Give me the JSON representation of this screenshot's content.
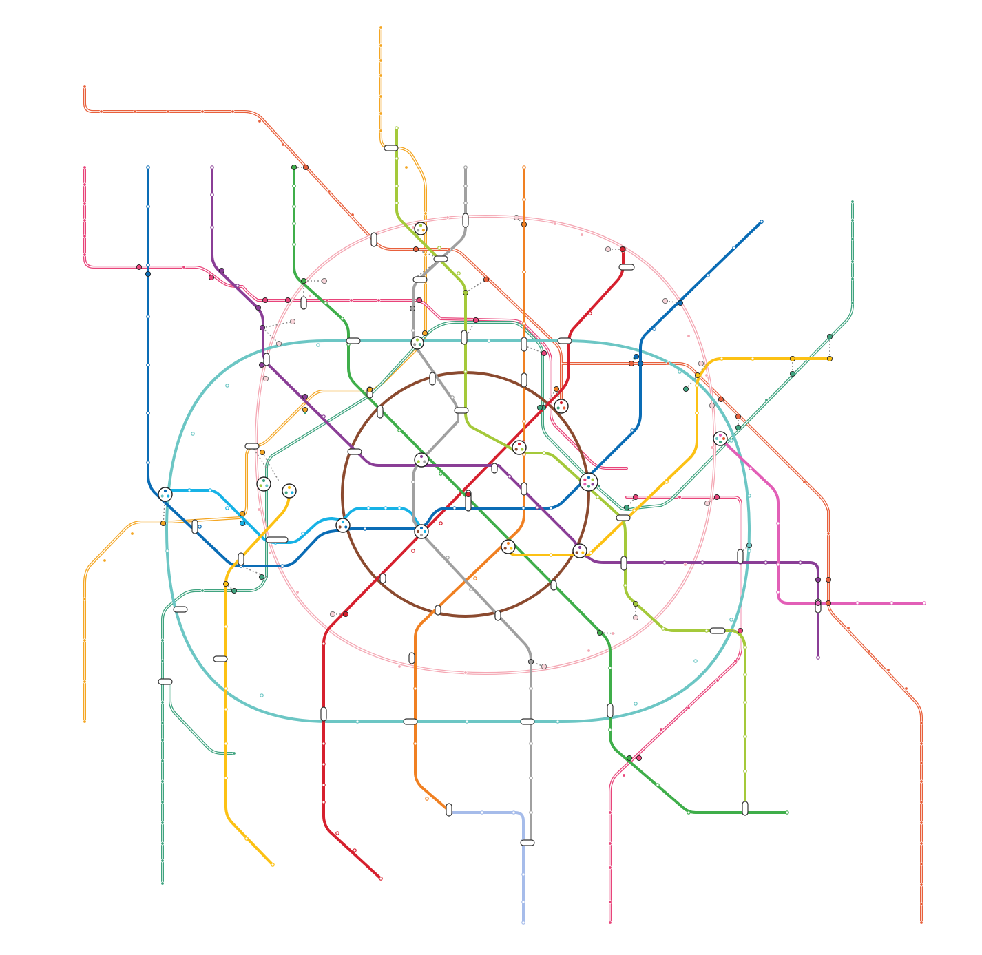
{
  "map": {
    "colors": {
      "red": "#d6202e",
      "green": "#3fae4a",
      "blue": "#0a6cb5",
      "lightblue": "#17b2e6",
      "orange": "#f08022",
      "purple": "#8a3e96",
      "yellow": "#fcc114",
      "grey": "#a0a0a0",
      "lime": "#a4c93a",
      "brown": "#8b4a2f",
      "teal": "#6cc6c4",
      "pinkline": "#e25fb7",
      "lavender": "#a6bcea",
      "mcd1": "#f4a623",
      "mcd2": "#e8603c",
      "mcd3": "#e8447a",
      "mcd4": "#3fa37f",
      "mcc": "#f4a8b4"
    },
    "lines": [
      {
        "id": "red",
        "color_key": "red",
        "style": "metro"
      },
      {
        "id": "green",
        "color_key": "green",
        "style": "metro"
      },
      {
        "id": "blue",
        "color_key": "blue",
        "style": "metro"
      },
      {
        "id": "lightblue",
        "color_key": "lightblue",
        "style": "metro"
      },
      {
        "id": "ring",
        "color_key": "brown",
        "style": "metro"
      },
      {
        "id": "orange",
        "color_key": "orange",
        "style": "metro"
      },
      {
        "id": "purple",
        "color_key": "purple",
        "style": "metro"
      },
      {
        "id": "yellow",
        "color_key": "yellow",
        "style": "metro"
      },
      {
        "id": "grey",
        "color_key": "grey",
        "style": "metro"
      },
      {
        "id": "lime",
        "color_key": "lime",
        "style": "metro"
      },
      {
        "id": "bigcircle",
        "color_key": "teal",
        "style": "metro"
      },
      {
        "id": "pink",
        "color_key": "pinkline",
        "style": "metro"
      },
      {
        "id": "lavender",
        "color_key": "lavender",
        "style": "metro"
      },
      {
        "id": "mcd1",
        "color_key": "mcd1",
        "style": "rail"
      },
      {
        "id": "mcd2",
        "color_key": "mcd2",
        "style": "rail"
      },
      {
        "id": "mcd3",
        "color_key": "mcd3",
        "style": "rail"
      },
      {
        "id": "mcd4",
        "color_key": "mcd4",
        "style": "rail"
      },
      {
        "id": "mcc",
        "color_key": "mcc",
        "style": "rail"
      }
    ]
  }
}
